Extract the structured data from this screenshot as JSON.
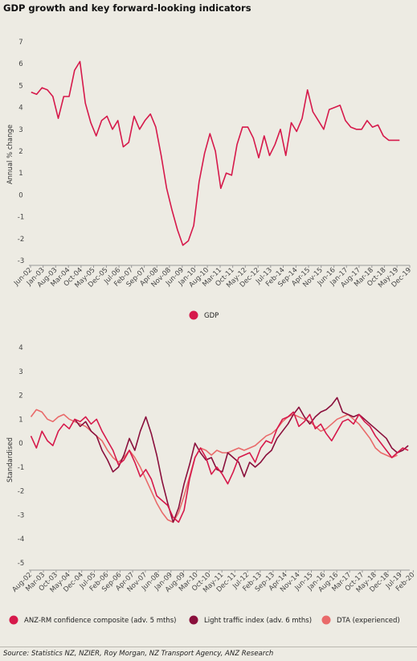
{
  "title": "GDP growth and key forward-looking indicators",
  "source": "Source: Statistics NZ, NZIER, Roy Morgan, NZ Transport Agency, ANZ Research",
  "colors": {
    "gdp": "#d6194b",
    "anz": "#d6194b",
    "traffic": "#8a0f3c",
    "dta": "#e96a6a",
    "background": "#edebe3"
  },
  "chart_data": [
    {
      "type": "line",
      "title": "",
      "ylabel": "Annual % change",
      "ylim": [
        -3,
        7
      ],
      "yticks": [
        7,
        6,
        5,
        4,
        3,
        2,
        1,
        0,
        -1,
        -2,
        -3
      ],
      "xlim": [
        2002.42,
        2019.92
      ],
      "xticks": [
        {
          "label": "Jun-02",
          "x": 2002.42
        },
        {
          "label": "Jan-03",
          "x": 2003.0
        },
        {
          "label": "Aug-03",
          "x": 2003.58
        },
        {
          "label": "Mar-04",
          "x": 2004.17
        },
        {
          "label": "Oct-04",
          "x": 2004.75
        },
        {
          "label": "May-05",
          "x": 2005.33
        },
        {
          "label": "Dec-05",
          "x": 2005.92
        },
        {
          "label": "Jul-06",
          "x": 2006.5
        },
        {
          "label": "Feb-07",
          "x": 2007.08
        },
        {
          "label": "Sep-07",
          "x": 2007.67
        },
        {
          "label": "Apr-08",
          "x": 2008.25
        },
        {
          "label": "Nov-08",
          "x": 2008.83
        },
        {
          "label": "Jun-09",
          "x": 2009.42
        },
        {
          "label": "Jan-10",
          "x": 2010.0
        },
        {
          "label": "Aug-10",
          "x": 2010.58
        },
        {
          "label": "Mar-11",
          "x": 2011.17
        },
        {
          "label": "Oct-11",
          "x": 2011.75
        },
        {
          "label": "May-12",
          "x": 2012.33
        },
        {
          "label": "Dec-12",
          "x": 2012.92
        },
        {
          "label": "Jul-13",
          "x": 2013.5
        },
        {
          "label": "Feb-14",
          "x": 2014.08
        },
        {
          "label": "Sep-14",
          "x": 2014.67
        },
        {
          "label": "Apr-15",
          "x": 2015.25
        },
        {
          "label": "Nov-15",
          "x": 2015.83
        },
        {
          "label": "Jun-16",
          "x": 2016.42
        },
        {
          "label": "Jan-17",
          "x": 2017.0
        },
        {
          "label": "Aug-17",
          "x": 2017.58
        },
        {
          "label": "Mar-18",
          "x": 2018.17
        },
        {
          "label": "Oct-18",
          "x": 2018.75
        },
        {
          "label": "May-19",
          "x": 2019.33
        },
        {
          "label": "Dec-19",
          "x": 2019.92
        }
      ],
      "legend_position": "bottom",
      "series": [
        {
          "name": "GDP",
          "color": "#d6194b",
          "x": [
            2002.45,
            2002.7,
            2002.95,
            2003.2,
            2003.45,
            2003.7,
            2003.95,
            2004.2,
            2004.45,
            2004.7,
            2004.95,
            2005.2,
            2005.45,
            2005.7,
            2005.95,
            2006.2,
            2006.45,
            2006.7,
            2006.95,
            2007.2,
            2007.45,
            2007.7,
            2007.95,
            2008.2,
            2008.45,
            2008.7,
            2008.95,
            2009.2,
            2009.45,
            2009.7,
            2009.95,
            2010.2,
            2010.45,
            2010.7,
            2010.95,
            2011.2,
            2011.45,
            2011.7,
            2011.95,
            2012.2,
            2012.45,
            2012.7,
            2012.95,
            2013.2,
            2013.45,
            2013.7,
            2013.95,
            2014.2,
            2014.45,
            2014.7,
            2014.95,
            2015.2,
            2015.45,
            2015.7,
            2015.95,
            2016.2,
            2016.45,
            2016.7,
            2016.95,
            2017.2,
            2017.45,
            2017.7,
            2017.95,
            2018.2,
            2018.45,
            2018.7,
            2018.95,
            2019.2,
            2019.45
          ],
          "y": [
            4.7,
            4.6,
            4.9,
            4.8,
            4.5,
            3.5,
            4.5,
            4.5,
            5.7,
            6.1,
            4.2,
            3.3,
            2.7,
            3.4,
            3.6,
            3.0,
            3.4,
            2.2,
            2.4,
            3.6,
            3.0,
            3.4,
            3.7,
            3.1,
            1.8,
            0.3,
            -0.7,
            -1.6,
            -2.3,
            -2.1,
            -1.4,
            0.6,
            1.9,
            2.8,
            2.0,
            0.3,
            1.0,
            0.9,
            2.3,
            3.1,
            3.1,
            2.6,
            1.7,
            2.7,
            1.8,
            2.3,
            3.0,
            1.8,
            3.3,
            2.9,
            3.5,
            4.8,
            3.8,
            3.4,
            3.0,
            3.9,
            4.0,
            4.1,
            3.4,
            3.1,
            3.0,
            3.0,
            3.4,
            3.1,
            3.2,
            2.7,
            2.5,
            2.5,
            2.5
          ]
        }
      ]
    },
    {
      "type": "line",
      "title": "",
      "ylabel": "Standardised",
      "ylim": [
        -5,
        4
      ],
      "yticks": [
        4,
        3,
        2,
        1,
        0,
        -1,
        -2,
        -3,
        -4,
        -5
      ],
      "xlim": [
        2002.58,
        2019.92
      ],
      "xticks": [
        {
          "label": "Aug-02",
          "x": 2002.58
        },
        {
          "label": "Mar-03",
          "x": 2003.17
        },
        {
          "label": "Oct-03",
          "x": 2003.75
        },
        {
          "label": "May-04",
          "x": 2004.33
        },
        {
          "label": "Dec-04",
          "x": 2004.92
        },
        {
          "label": "Jul-05",
          "x": 2005.5
        },
        {
          "label": "Feb-06",
          "x": 2006.08
        },
        {
          "label": "Sep-06",
          "x": 2006.67
        },
        {
          "label": "Apr-07",
          "x": 2007.25
        },
        {
          "label": "Nov-07",
          "x": 2007.83
        },
        {
          "label": "Jun-08",
          "x": 2008.42
        },
        {
          "label": "Jan-09",
          "x": 2009.0
        },
        {
          "label": "Aug-09",
          "x": 2009.58
        },
        {
          "label": "Mar-10",
          "x": 2010.17
        },
        {
          "label": "Oct-10",
          "x": 2010.75
        },
        {
          "label": "May-11",
          "x": 2011.33
        },
        {
          "label": "Dec-11",
          "x": 2011.92
        },
        {
          "label": "Jul-12",
          "x": 2012.5
        },
        {
          "label": "Feb-13",
          "x": 2013.08
        },
        {
          "label": "Sep-13",
          "x": 2013.67
        },
        {
          "label": "Apr-14",
          "x": 2014.25
        },
        {
          "label": "Nov-14",
          "x": 2014.83
        },
        {
          "label": "Jun-15",
          "x": 2015.42
        },
        {
          "label": "Jan-16",
          "x": 2016.0
        },
        {
          "label": "Aug-16",
          "x": 2016.58
        },
        {
          "label": "Mar-17",
          "x": 2017.17
        },
        {
          "label": "Oct-17",
          "x": 2017.75
        },
        {
          "label": "May-18",
          "x": 2018.33
        },
        {
          "label": "Dec-18",
          "x": 2018.92
        },
        {
          "label": "Jul-19",
          "x": 2019.5
        },
        {
          "label": "Feb-20",
          "x": 2020.08
        }
      ],
      "legend_position": "bottom",
      "series": [
        {
          "name": "ANZ-RM confidence composite (adv. 5 mths)",
          "color": "#d6194b",
          "x": [
            2002.6,
            2002.85,
            2003.1,
            2003.35,
            2003.6,
            2003.85,
            2004.1,
            2004.35,
            2004.6,
            2004.85,
            2005.1,
            2005.35,
            2005.6,
            2005.85,
            2006.1,
            2006.35,
            2006.6,
            2006.85,
            2007.1,
            2007.35,
            2007.6,
            2007.85,
            2008.1,
            2008.35,
            2008.6,
            2008.85,
            2009.1,
            2009.35,
            2009.6,
            2009.85,
            2010.1,
            2010.35,
            2010.6,
            2010.85,
            2011.1,
            2011.35,
            2011.6,
            2011.85,
            2012.1,
            2012.35,
            2012.6,
            2012.85,
            2013.1,
            2013.35,
            2013.6,
            2013.85,
            2014.1,
            2014.35,
            2014.6,
            2014.85,
            2015.1,
            2015.35,
            2015.6,
            2015.85,
            2016.1,
            2016.35,
            2016.6,
            2016.85,
            2017.1,
            2017.35,
            2017.6,
            2017.85,
            2018.1,
            2018.35,
            2018.6,
            2018.85,
            2019.1,
            2019.35,
            2019.6,
            2019.85
          ],
          "y": [
            0.3,
            -0.2,
            0.5,
            0.1,
            -0.1,
            0.5,
            0.8,
            0.6,
            1.0,
            0.9,
            1.1,
            0.8,
            1.0,
            0.5,
            0.1,
            -0.3,
            -0.9,
            -0.7,
            -0.3,
            -0.8,
            -1.4,
            -1.1,
            -1.5,
            -2.2,
            -2.4,
            -2.6,
            -3.1,
            -3.3,
            -2.8,
            -1.5,
            -0.6,
            -0.2,
            -0.6,
            -1.3,
            -1.0,
            -1.3,
            -1.7,
            -1.2,
            -0.6,
            -0.5,
            -0.4,
            -0.8,
            -0.2,
            0.1,
            0.0,
            0.6,
            1.0,
            1.1,
            1.3,
            0.7,
            0.9,
            1.2,
            0.6,
            0.8,
            0.4,
            0.1,
            0.5,
            0.9,
            1.0,
            0.8,
            1.2,
            0.9,
            0.7,
            0.3,
            0.0,
            -0.3,
            -0.6,
            -0.4,
            -0.2,
            -0.3
          ]
        },
        {
          "name": "Light traffic index (adv. 6 mths)",
          "color": "#8a0f3c",
          "x": [
            2004.6,
            2004.85,
            2005.1,
            2005.35,
            2005.6,
            2005.85,
            2006.1,
            2006.35,
            2006.6,
            2006.85,
            2007.1,
            2007.35,
            2007.6,
            2007.85,
            2008.1,
            2008.35,
            2008.6,
            2008.85,
            2009.1,
            2009.35,
            2009.6,
            2009.85,
            2010.1,
            2010.35,
            2010.6,
            2010.85,
            2011.1,
            2011.35,
            2011.6,
            2011.85,
            2012.1,
            2012.35,
            2012.6,
            2012.85,
            2013.1,
            2013.35,
            2013.6,
            2013.85,
            2014.1,
            2014.35,
            2014.6,
            2014.85,
            2015.1,
            2015.35,
            2015.6,
            2015.85,
            2016.1,
            2016.35,
            2016.6,
            2016.85,
            2017.1,
            2017.35,
            2017.6,
            2017.85,
            2018.1,
            2018.35,
            2018.6,
            2018.85,
            2019.1,
            2019.35,
            2019.6,
            2019.85
          ],
          "y": [
            1.0,
            0.7,
            0.9,
            0.5,
            0.3,
            -0.3,
            -0.7,
            -1.2,
            -1.0,
            -0.5,
            0.2,
            -0.3,
            0.5,
            1.1,
            0.4,
            -0.5,
            -1.6,
            -2.5,
            -3.3,
            -2.7,
            -1.7,
            -0.9,
            0.0,
            -0.4,
            -0.7,
            -0.6,
            -1.1,
            -1.2,
            -0.4,
            -0.6,
            -0.8,
            -1.4,
            -0.8,
            -1.0,
            -0.8,
            -0.5,
            -0.3,
            0.2,
            0.5,
            0.8,
            1.2,
            1.5,
            1.1,
            0.8,
            1.1,
            1.3,
            1.4,
            1.6,
            1.9,
            1.3,
            1.2,
            1.1,
            1.2,
            1.0,
            0.8,
            0.6,
            0.4,
            0.2,
            -0.2,
            -0.4,
            -0.3,
            -0.1
          ]
        },
        {
          "name": "DTA (experienced)",
          "color": "#e96a6a",
          "x": [
            2002.6,
            2002.85,
            2003.1,
            2003.35,
            2003.6,
            2003.85,
            2004.1,
            2004.35,
            2004.6,
            2004.85,
            2005.1,
            2005.35,
            2005.6,
            2005.85,
            2006.1,
            2006.35,
            2006.6,
            2006.85,
            2007.1,
            2007.35,
            2007.6,
            2007.85,
            2008.1,
            2008.35,
            2008.6,
            2008.85,
            2009.1,
            2009.35,
            2009.6,
            2009.85,
            2010.1,
            2010.35,
            2010.6,
            2010.85,
            2011.1,
            2011.35,
            2011.6,
            2011.85,
            2012.1,
            2012.35,
            2012.6,
            2012.85,
            2013.1,
            2013.35,
            2013.6,
            2013.85,
            2014.1,
            2014.35,
            2014.6,
            2014.85,
            2015.1,
            2015.35,
            2015.6,
            2015.85,
            2016.1,
            2016.35,
            2016.6,
            2016.85,
            2017.1,
            2017.35,
            2017.6,
            2017.85,
            2018.1,
            2018.35,
            2018.6,
            2018.85,
            2019.1,
            2019.35
          ],
          "y": [
            1.1,
            1.4,
            1.3,
            1.0,
            0.9,
            1.1,
            1.2,
            1.0,
            0.9,
            0.8,
            0.7,
            0.5,
            0.3,
            0.1,
            -0.3,
            -0.6,
            -0.8,
            -0.6,
            -0.3,
            -0.6,
            -1.0,
            -1.5,
            -2.0,
            -2.5,
            -2.9,
            -3.2,
            -3.3,
            -2.9,
            -2.2,
            -1.4,
            -0.6,
            -0.2,
            -0.3,
            -0.5,
            -0.3,
            -0.4,
            -0.4,
            -0.3,
            -0.2,
            -0.3,
            -0.2,
            -0.1,
            0.1,
            0.3,
            0.4,
            0.6,
            0.9,
            1.1,
            1.2,
            1.1,
            1.0,
            0.9,
            0.7,
            0.5,
            0.6,
            0.8,
            1.0,
            1.1,
            1.2,
            1.0,
            0.8,
            0.5,
            0.2,
            -0.2,
            -0.4,
            -0.5,
            -0.6,
            -0.5
          ]
        }
      ]
    }
  ]
}
